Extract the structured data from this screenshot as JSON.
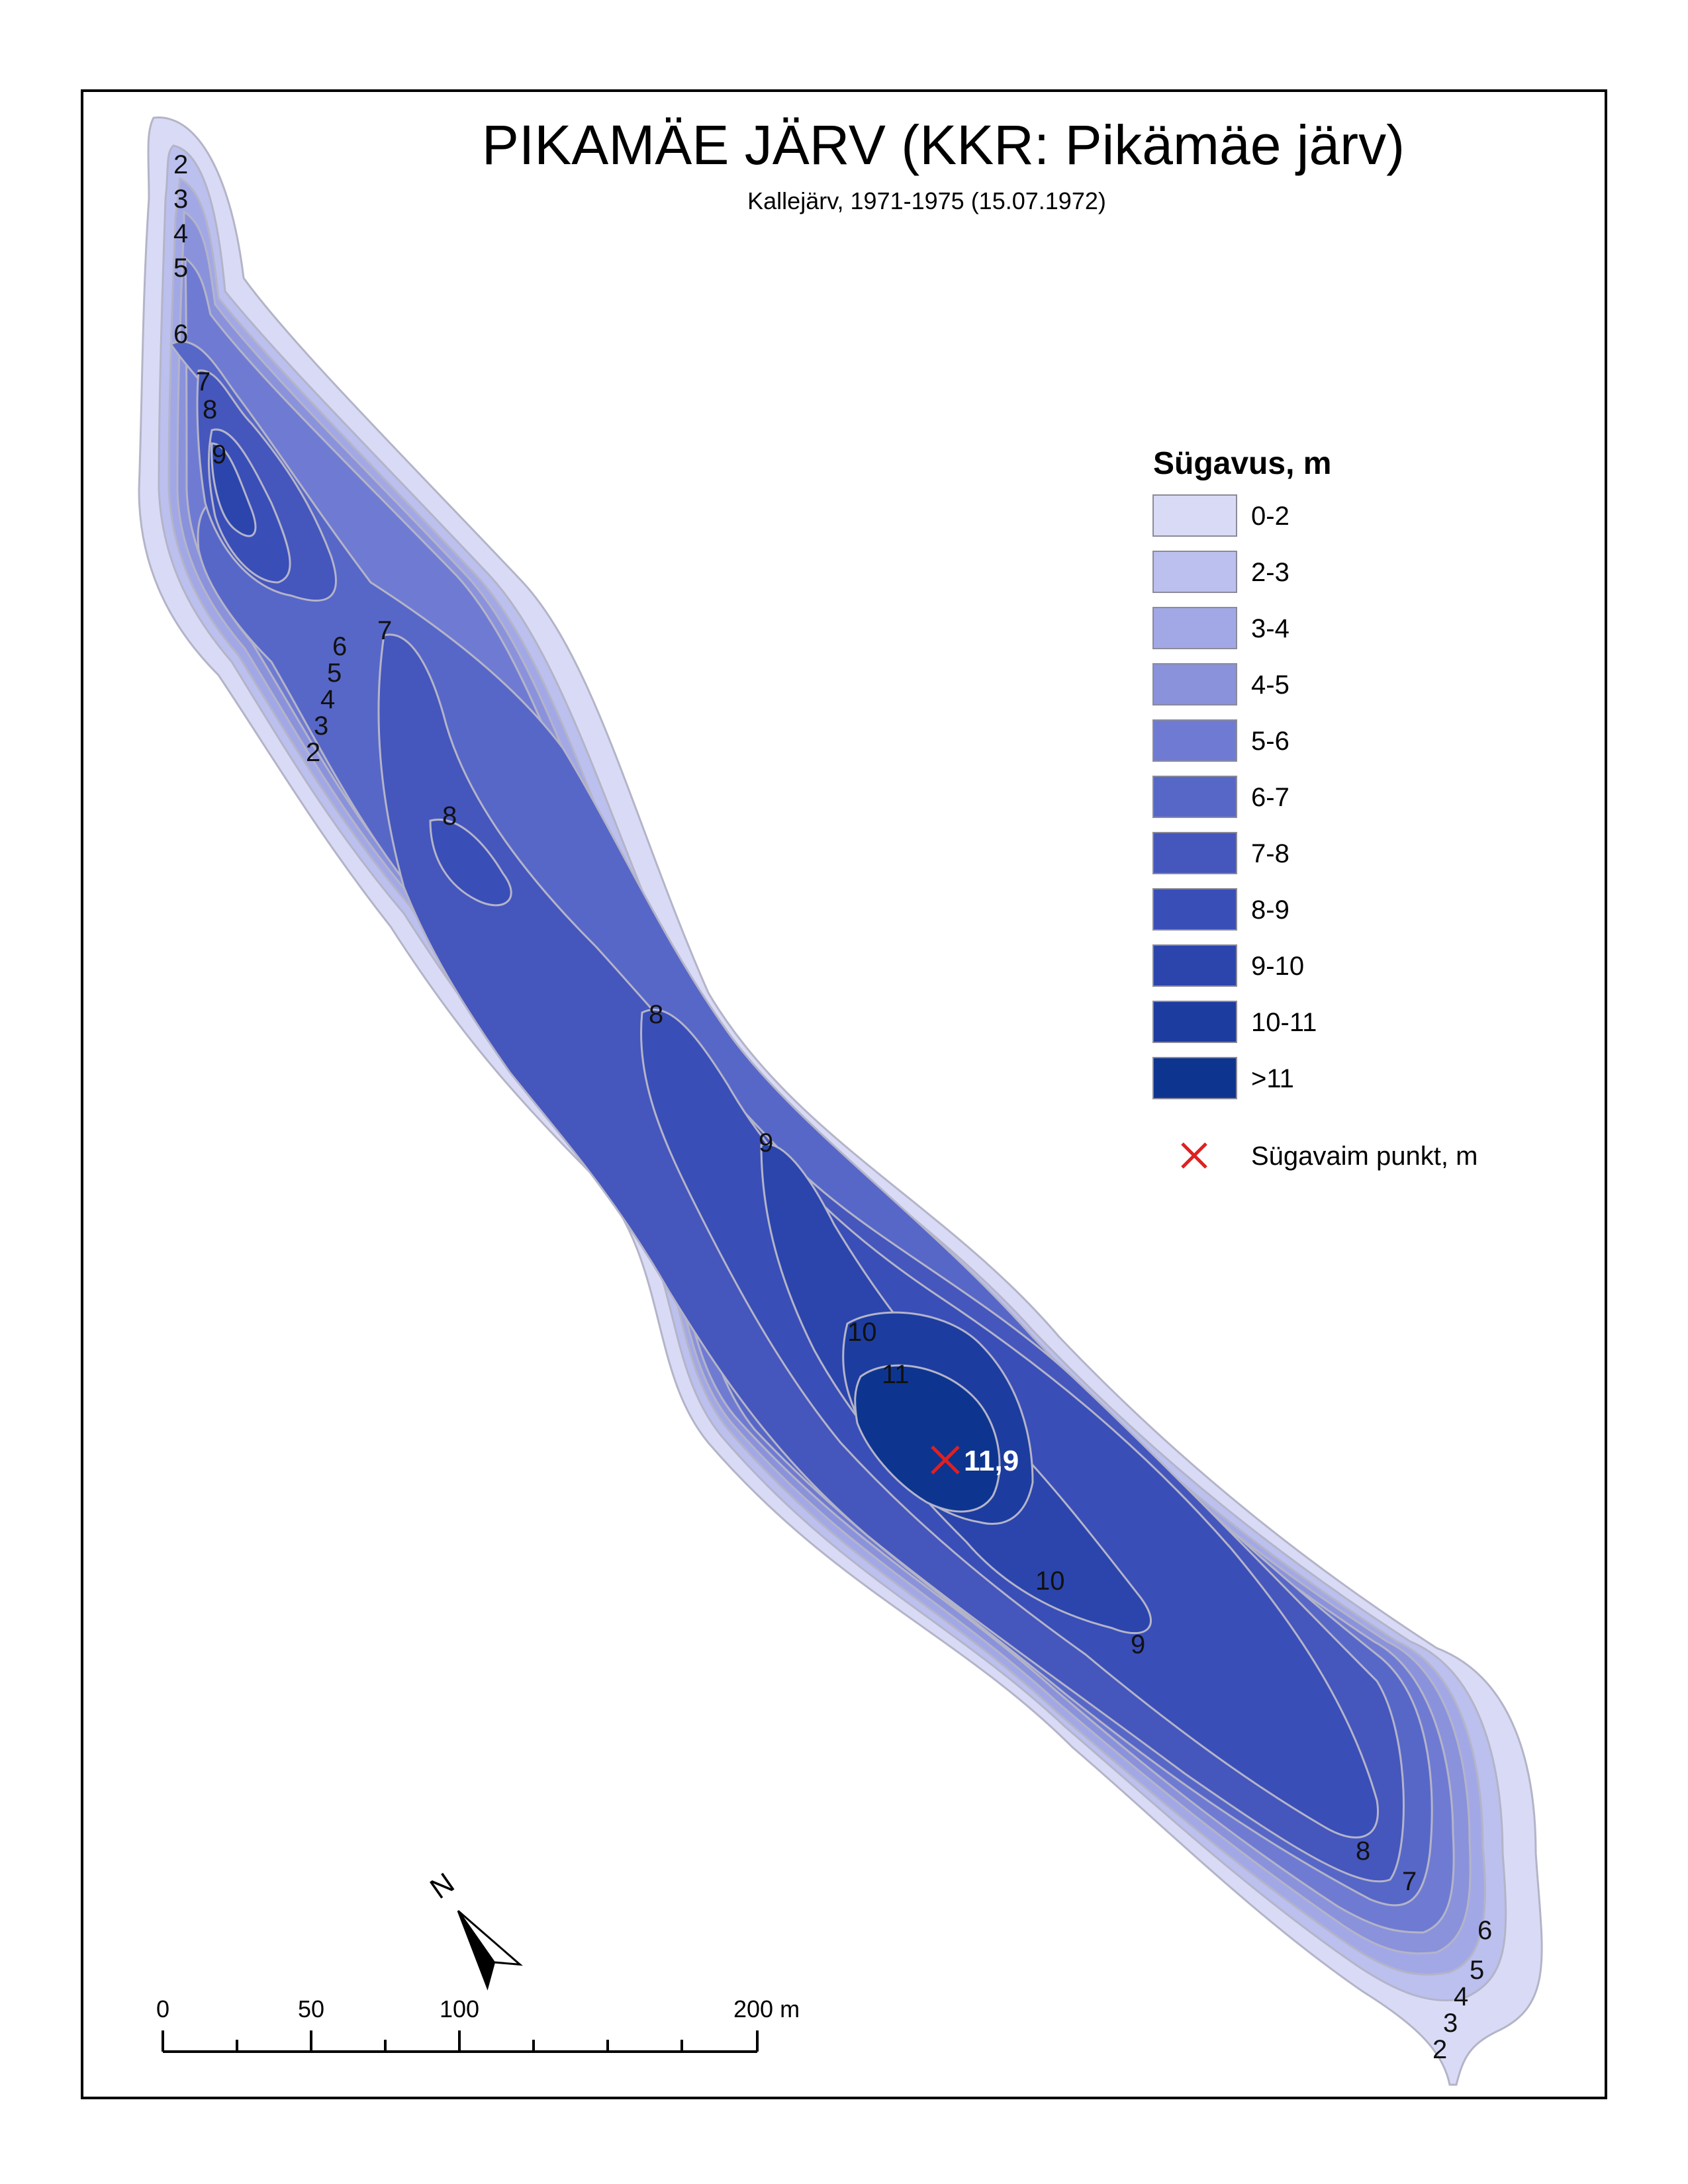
{
  "title": "PIKAMÄE JÄRV (KKR: Pikämäe järv)",
  "subtitle": "Kallejärv, 1971-1975 (15.07.1972)",
  "legend": {
    "title": "Sügavus, m",
    "classes": [
      {
        "label": "0-2",
        "color": "#d9dbf6"
      },
      {
        "label": "2-3",
        "color": "#bcc0ee"
      },
      {
        "label": "3-4",
        "color": "#a2a8e6"
      },
      {
        "label": "4-5",
        "color": "#8a92dc"
      },
      {
        "label": "5-6",
        "color": "#6f7bd2"
      },
      {
        "label": "6-7",
        "color": "#5767c8"
      },
      {
        "label": "7-8",
        "color": "#4556bd"
      },
      {
        "label": "8-9",
        "color": "#3a4eb8"
      },
      {
        "label": "9-10",
        "color": "#2b45ad"
      },
      {
        "label": "10-11",
        "color": "#1d3c9f"
      },
      {
        "label": ">11",
        "color": "#0d3590"
      }
    ],
    "deepest_point_label": "Sügavaim punkt, m",
    "deepest_point_color": "#e02020"
  },
  "deepest_point_value": "11,9",
  "contour_labels": [
    "2",
    "3",
    "4",
    "5",
    "6",
    "7",
    "8",
    "9",
    "6",
    "7",
    "5",
    "4",
    "3",
    "2",
    "8",
    "8",
    "9",
    "10",
    "11",
    "10",
    "9",
    "8",
    "7",
    "6",
    "5",
    "4",
    "3",
    "2"
  ],
  "north_arrow": {
    "label": "N",
    "icon": "north-arrow-icon"
  },
  "scale_bar": {
    "labels": [
      "0",
      "50",
      "100",
      "200 m"
    ]
  }
}
